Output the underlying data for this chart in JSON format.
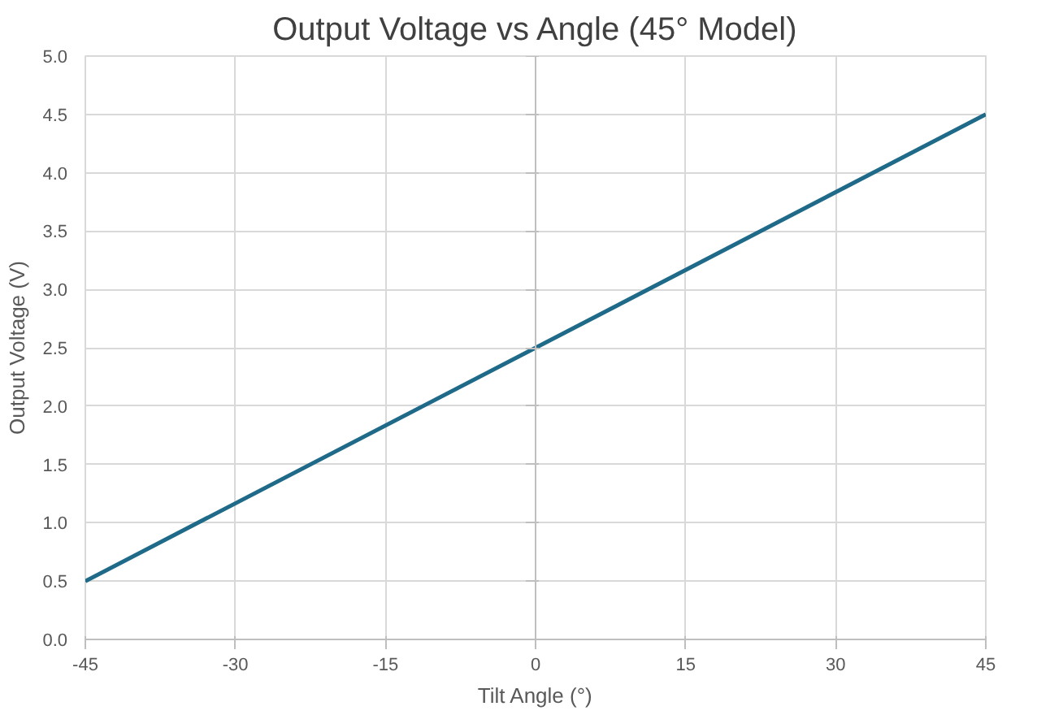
{
  "chart_data": {
    "type": "line",
    "title": "Output Voltage vs Angle (45° Model)",
    "xlabel": "Tilt Angle (°)",
    "ylabel": "Output Voltage (V)",
    "x": [
      -45,
      45
    ],
    "series": [
      {
        "color": "#1f6a88",
        "values": [
          0.5,
          4.5
        ]
      }
    ],
    "xlim": [
      -45,
      45
    ],
    "xticks": [
      -45,
      -30,
      -15,
      0,
      15,
      30,
      45
    ],
    "ylim": [
      0,
      5
    ],
    "yticks": [
      {
        "value": 0,
        "label": "0.0"
      },
      0.5,
      {
        "value": 1,
        "label": "1.0"
      },
      1.5,
      {
        "value": 2,
        "label": "2.0"
      },
      2.5,
      {
        "value": 3,
        "label": "3.0"
      },
      3.5,
      {
        "value": 4,
        "label": "4.0"
      },
      4.5,
      {
        "value": 5,
        "label": "5.0"
      }
    ],
    "grid": true,
    "marker": "none",
    "line_style": "solid"
  }
}
